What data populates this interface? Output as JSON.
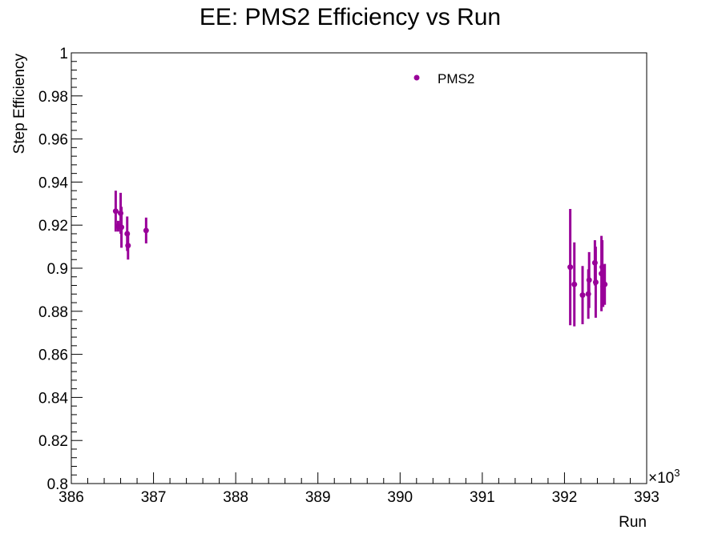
{
  "chart_data": {
    "type": "scatter",
    "title": "EE: PMS2 Efficiency vs Run",
    "xlabel": "Run",
    "ylabel": "Step Efficiency",
    "x_multiplier": "×10",
    "x_multiplier_exp": "3",
    "xlim": [
      386,
      393
    ],
    "ylim": [
      0.8,
      1.0
    ],
    "x_ticks": [
      "386",
      "387",
      "388",
      "389",
      "390",
      "391",
      "392",
      "393"
    ],
    "y_ticks": [
      "0.8",
      "0.82",
      "0.84",
      "0.86",
      "0.88",
      "0.9",
      "0.92",
      "0.94",
      "0.96",
      "0.98",
      "1"
    ],
    "grid": false,
    "legend_position": "top-center",
    "series": [
      {
        "name": "PMS2",
        "color": "#990099",
        "marker": "circle",
        "points": [
          {
            "x": 386.54,
            "y": 0.9265,
            "err": 0.0095
          },
          {
            "x": 386.57,
            "y": 0.9195,
            "err": 0.0025
          },
          {
            "x": 386.6,
            "y": 0.9255,
            "err": 0.0095
          },
          {
            "x": 386.61,
            "y": 0.919,
            "err": 0.0095
          },
          {
            "x": 386.68,
            "y": 0.916,
            "err": 0.008
          },
          {
            "x": 386.69,
            "y": 0.9105,
            "err": 0.0065
          },
          {
            "x": 386.91,
            "y": 0.9175,
            "err": 0.006
          },
          {
            "x": 392.07,
            "y": 0.9005,
            "err": 0.027
          },
          {
            "x": 392.12,
            "y": 0.8925,
            "err": 0.0195
          },
          {
            "x": 392.22,
            "y": 0.8875,
            "err": 0.0135
          },
          {
            "x": 392.29,
            "y": 0.888,
            "err": 0.0115
          },
          {
            "x": 392.3,
            "y": 0.8945,
            "err": 0.013
          },
          {
            "x": 392.37,
            "y": 0.9025,
            "err": 0.0105
          },
          {
            "x": 392.38,
            "y": 0.8935,
            "err": 0.0165
          },
          {
            "x": 392.45,
            "y": 0.8975,
            "err": 0.0175
          },
          {
            "x": 392.46,
            "y": 0.9005,
            "err": 0.0125
          },
          {
            "x": 392.47,
            "y": 0.8915,
            "err": 0.0095
          },
          {
            "x": 392.49,
            "y": 0.8925,
            "err": 0.0095
          }
        ]
      }
    ]
  }
}
